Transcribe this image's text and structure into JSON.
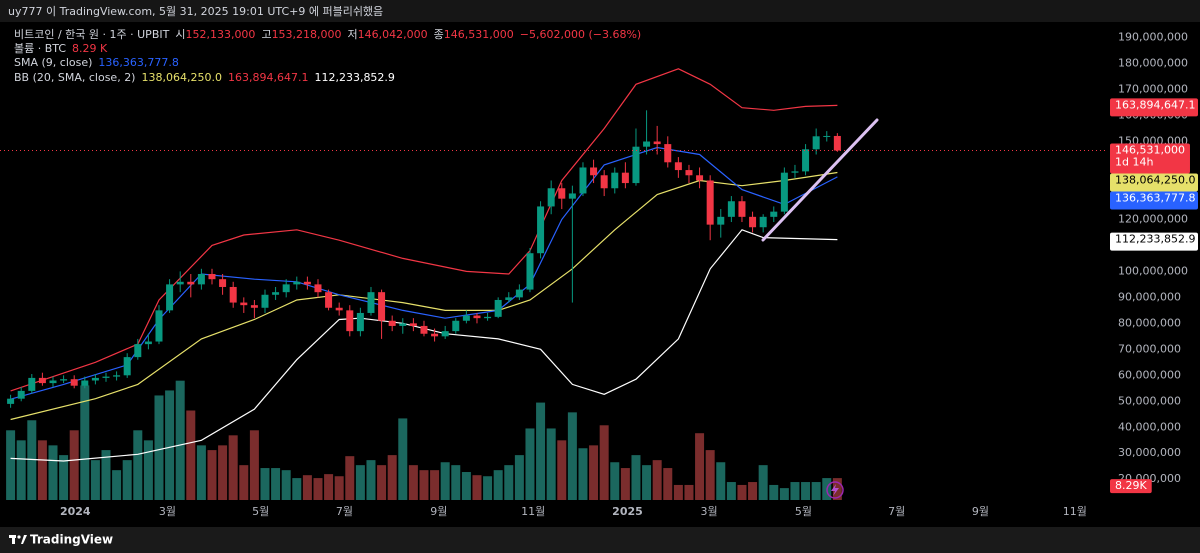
{
  "page": {
    "published": "uy777 이 TradingView.com, 5월 31, 2025 19:01 UTC+9 에 퍼블리쉬했음",
    "brand": "TradingView"
  },
  "chart_data": {
    "type": "candlestick",
    "title": "비트코인 / 한국 원 · 1주 · UPBIT",
    "open": {
      "name": "시",
      "last_label": "152,133,000",
      "values": [
        49000000.0,
        51000000.0,
        54000000.0,
        59000000.0,
        57000000.0,
        58000000.0,
        58500000.0,
        56000000.0,
        58000000.0,
        59000000.0,
        59500000.0,
        60000000.0,
        67000000.0,
        72000000.0,
        73000000.0,
        85000000.0,
        95000000.0,
        96000000.0,
        95000000.0,
        99000000.0,
        97000000.0,
        94000000.0,
        88000000.0,
        87000000.0,
        86000000.0,
        91000000.0,
        92000000.0,
        95000000.0,
        96000000.0,
        95000000.0,
        92000000.0,
        86000000.0,
        85000000.0,
        77000000.0,
        84000000.0,
        92000000.0,
        81000000.0,
        79000000.0,
        80000000.0,
        79000000.0,
        76000000.0,
        75000000.0,
        77000000.0,
        81000000.0,
        83000000.0,
        82000000.0,
        82500000.0,
        89000000.0,
        90000000.0,
        93000000.0,
        107000000.0,
        125000000.0,
        132000000.0,
        128000000.0,
        130000000.0,
        140000000.0,
        137000000.0,
        132000000.0,
        138000000.0,
        134000000.0,
        148000000.0,
        150000000.0,
        149000000.0,
        142000000.0,
        139000000.0,
        137000000.0,
        135000000.0,
        118000000.0,
        121000000.0,
        127000000.0,
        121000000.0,
        117000000.0,
        121000000.0,
        123000000.0,
        138000000.0,
        138500000.0,
        147000000.0,
        152000000.0,
        152133000
      ]
    },
    "high": {
      "name": "고",
      "last_label": "153,218,000",
      "values": [
        52500000.0,
        55500000.0,
        60500000.0,
        61000000.0,
        59500000.0,
        60000000.0,
        60000000.0,
        59500000.0,
        60500000.0,
        61000000.0,
        61500000.0,
        68500000.0,
        74000000.0,
        76000000.0,
        87000000.0,
        97000000.0,
        100000000.0,
        99000000.0,
        101000000.0,
        101000000.0,
        99000000.0,
        96000000.0,
        90000000.0,
        89000000.0,
        93000000.0,
        94000000.0,
        97000000.0,
        98000000.0,
        98000000.0,
        97000000.0,
        93000000.0,
        88000000.0,
        87000000.0,
        86000000.0,
        94000000.0,
        93000000.0,
        83000000.0,
        82000000.0,
        82000000.0,
        81000000.0,
        78000000.0,
        79000000.0,
        82000000.0,
        85000000.0,
        84000000.0,
        84000000.0,
        90000000.0,
        92000000.0,
        95000000.0,
        109000000.0,
        127000000.0,
        135000000.0,
        134000000.0,
        133000000.0,
        142000000.0,
        143000000.0,
        139000000.0,
        140000000.0,
        142000000.0,
        155000000.0,
        162000000.0,
        156000000.0,
        152000000.0,
        144000000.0,
        141000000.0,
        140000000.0,
        137000000.0,
        124000000.0,
        129000000.0,
        129000000.0,
        123000000.0,
        122000000.0,
        125000000.0,
        140000000.0,
        141000000.0,
        149000000.0,
        155000000.0,
        154000000.0,
        153218000
      ]
    },
    "low": {
      "name": "저",
      "last_label": "146,042,000",
      "values": [
        47500000.0,
        50000000.0,
        53000000.0,
        56000000.0,
        55500000.0,
        57000000.0,
        55000000.0,
        55000000.0,
        56500000.0,
        57500000.0,
        58000000.0,
        59000000.0,
        66000000.0,
        70000000.0,
        72000000.0,
        84000000.0,
        92000000.0,
        90000000.0,
        93000000.0,
        95000000.0,
        91000000.0,
        86000000.0,
        84000000.0,
        82000000.0,
        84000000.0,
        89000000.0,
        90000000.0,
        93000000.0,
        93000000.0,
        90000000.0,
        85000000.0,
        83000000.0,
        75000000.0,
        75000000.0,
        83000000.0,
        74000000.0,
        77000000.0,
        76000000.0,
        77000000.0,
        75000000.0,
        73000000.0,
        74000000.0,
        76000000.0,
        80000000.0,
        80000000.0,
        81000000.0,
        82000000.0,
        88000000.0,
        89000000.0,
        92000000.0,
        105000000.0,
        122000000.0,
        124000000.0,
        88000000.0,
        129000000.0,
        134000000.0,
        129000000.0,
        130000000.0,
        132000000.0,
        133000000.0,
        145000000.0,
        145000000.0,
        140000000.0,
        136000000.0,
        134000000.0,
        132000000.0,
        112000000.0,
        113000000.0,
        119000000.0,
        119000000.0,
        115000000.0,
        115000000.0,
        119000000.0,
        122000000.0,
        136000000.0,
        137000000.0,
        145000000.0,
        150000000.0,
        146042000
      ]
    },
    "close": {
      "name": "종",
      "last_label": "146,531,000",
      "values": [
        51000000.0,
        54000000.0,
        59000000.0,
        57000000.0,
        58000000.0,
        58500000.0,
        56000000.0,
        58000000.0,
        59000000.0,
        59500000.0,
        60000000.0,
        67000000.0,
        72000000.0,
        73000000.0,
        85000000.0,
        95000000.0,
        96000000.0,
        95000000.0,
        99000000.0,
        97000000.0,
        94000000.0,
        88000000.0,
        87000000.0,
        86000000.0,
        91000000.0,
        92000000.0,
        95000000.0,
        96000000.0,
        95000000.0,
        92000000.0,
        86000000.0,
        85000000.0,
        77000000.0,
        84000000.0,
        92000000.0,
        81000000.0,
        79000000.0,
        80000000.0,
        79000000.0,
        76000000.0,
        75000000.0,
        77000000.0,
        81000000.0,
        83000000.0,
        82000000.0,
        82500000.0,
        89000000.0,
        90000000.0,
        93000000.0,
        107000000.0,
        125000000.0,
        132000000.0,
        128000000.0,
        130000000.0,
        140000000.0,
        137000000.0,
        132000000.0,
        138000000.0,
        134000000.0,
        148000000.0,
        150000000.0,
        149000000.0,
        142000000.0,
        139000000.0,
        137000000.0,
        135000000.0,
        118000000.0,
        121000000.0,
        127000000.0,
        121000000.0,
        117000000.0,
        121000000.0,
        123000000.0,
        138000000.0,
        138500000.0,
        147000000.0,
        152000000.0,
        152133000,
        146531000
      ]
    },
    "change_label": "−5,602,000 (−3.68%)",
    "countdown": "1d 14h",
    "up_color": "#089981",
    "down_color": "#f23645",
    "volume": {
      "name": "볼륨 · BTC",
      "last_label": "8.29 K",
      "axis_label": "8.29K",
      "up_color": "#1b675e",
      "down_color": "#7b2d2d",
      "lim": [
        0,
        50000
      ],
      "values": [
        26400,
        22600,
        30200,
        22600,
        20700,
        17000,
        26400,
        43400,
        15100,
        18900,
        11300,
        15100,
        26400,
        22600,
        39600,
        41500,
        45200,
        33900,
        20700,
        18900,
        20700,
        24500,
        13200,
        26400,
        12100,
        12100,
        11300,
        8300,
        9400,
        8300,
        9800,
        9000,
        16600,
        13200,
        15100,
        13200,
        17000,
        30900,
        13200,
        11300,
        11300,
        14300,
        13200,
        10600,
        9400,
        9000,
        11300,
        13200,
        17000,
        27100,
        36900,
        27100,
        22600,
        33200,
        19600,
        20700,
        28300,
        14300,
        12100,
        17000,
        13200,
        15100,
        12100,
        5700,
        5700,
        25300,
        18900,
        14300,
        6800,
        5700,
        6800,
        13200,
        5700,
        4500,
        6800,
        6800,
        6800,
        8300,
        8290
      ]
    },
    "sma": {
      "name": "SMA (9, close)",
      "color": "#2962ff",
      "last_label": "136,363,777.8",
      "x": [
        0,
        5,
        11,
        14,
        18,
        23,
        27,
        31,
        37,
        41,
        46,
        49,
        52,
        56,
        61,
        65,
        69,
        73,
        78
      ],
      "values": [
        50800000.0,
        56500000.0,
        64000000.0,
        81500000.0,
        99000000.0,
        97000000.0,
        96000000.0,
        91000000.0,
        85000000.0,
        82000000.0,
        85000000.0,
        95000000.0,
        120000000.0,
        141000000.0,
        147700000.0,
        145000000.0,
        131500000.0,
        125800000.0,
        136363777.8
      ]
    },
    "bb": {
      "name": "BB (20, SMA, close, 2)",
      "bands": [
        {
          "color": "#e6e06a",
          "last_label": "138,064,250.0",
          "x": [
            0,
            8,
            12,
            18,
            23,
            27,
            31,
            37,
            41,
            46,
            49,
            53,
            57,
            61,
            65,
            69,
            73,
            78
          ],
          "values": [
            43000000.0,
            51000000.0,
            56500000.0,
            74000000.0,
            81500000.0,
            89000000.0,
            91000000.0,
            88000000.0,
            85000000.0,
            85000000.0,
            89000000.0,
            101000000.0,
            116000000.0,
            129600000.0,
            135000000.0,
            133000000.0,
            135000000.0,
            138064250
          ]
        },
        {
          "color": "#f23645",
          "last_label": "163,894,647.1",
          "x": [
            0,
            8,
            12,
            14,
            19,
            22,
            27,
            31,
            37,
            43,
            47,
            49,
            52,
            56,
            59,
            63,
            66,
            69,
            72,
            75,
            78
          ],
          "values": [
            54000000.0,
            65000000.0,
            72000000.0,
            89000000.0,
            110000000.0,
            114000000.0,
            116000000.0,
            112000000.0,
            105000000.0,
            100000000.0,
            99000000.0,
            108000000.0,
            135000000.0,
            155000000.0,
            172000000.0,
            178000000.0,
            172000000.0,
            163000000.0,
            162000000.0,
            163500000.0,
            163894647.1
          ]
        },
        {
          "color": "#ffffff",
          "last_label": "112,233,852.9",
          "x": [
            0,
            5,
            12,
            18,
            23,
            27,
            31,
            33,
            37,
            41,
            46,
            50,
            53,
            56,
            59,
            63,
            66,
            69,
            71,
            78
          ],
          "values": [
            28000000.0,
            27000000.0,
            29600000.0,
            35000000.0,
            47000000.0,
            66000000.0,
            81500000.0,
            82000000.0,
            80000000.0,
            76000000.0,
            74000000.0,
            70000000.0,
            56500000.0,
            52700000.0,
            58500000.0,
            74000000.0,
            101000000.0,
            116000000.0,
            113000000.0,
            112233852.9
          ]
        }
      ]
    },
    "xlim": [
      -1,
      103.25
    ],
    "xticks": [
      {
        "value": 6.1,
        "label": "2024"
      },
      {
        "value": 14.8,
        "label": "3월"
      },
      {
        "value": 23.6,
        "label": "5월"
      },
      {
        "value": 31.5,
        "label": "7월"
      },
      {
        "value": 40.4,
        "label": "9월"
      },
      {
        "value": 49.3,
        "label": "11월"
      },
      {
        "value": 58.2,
        "label": "2025"
      },
      {
        "value": 65.9,
        "label": "3월"
      },
      {
        "value": 74.8,
        "label": "5월"
      },
      {
        "value": 83.6,
        "label": "7월"
      },
      {
        "value": 91.5,
        "label": "9월"
      },
      {
        "value": 100.4,
        "label": "11월"
      }
    ],
    "ylim": [
      12000000.0,
      196000000.0
    ],
    "yticks": [
      {
        "value": 20000000.0,
        "label": "20,000,000"
      },
      {
        "value": 30000000.0,
        "label": "30,000,000"
      },
      {
        "value": 40000000.0,
        "label": "40,000,000"
      },
      {
        "value": 50000000.0,
        "label": "50,000,000"
      },
      {
        "value": 60000000.0,
        "label": "60,000,000"
      },
      {
        "value": 70000000.0,
        "label": "70,000,000"
      },
      {
        "value": 80000000.0,
        "label": "80,000,000"
      },
      {
        "value": 90000000.0,
        "label": "90,000,000"
      },
      {
        "value": 100000000.0,
        "label": "100,000,000"
      },
      {
        "value": 110000000.0,
        "label": "110,000,000"
      },
      {
        "value": 120000000.0,
        "label": "120,000,000"
      },
      {
        "value": 130000000.0,
        "label": "130,000,000"
      },
      {
        "value": 140000000.0,
        "label": "140,000,000"
      },
      {
        "value": 150000000.0,
        "label": "150,000,000"
      },
      {
        "value": 160000000.0,
        "label": "160,000,000"
      },
      {
        "value": 170000000.0,
        "label": "170,000,000"
      },
      {
        "value": 180000000.0,
        "label": "180,000,000"
      },
      {
        "value": 190000000.0,
        "label": "190,000,000"
      }
    ],
    "grid": false
  }
}
